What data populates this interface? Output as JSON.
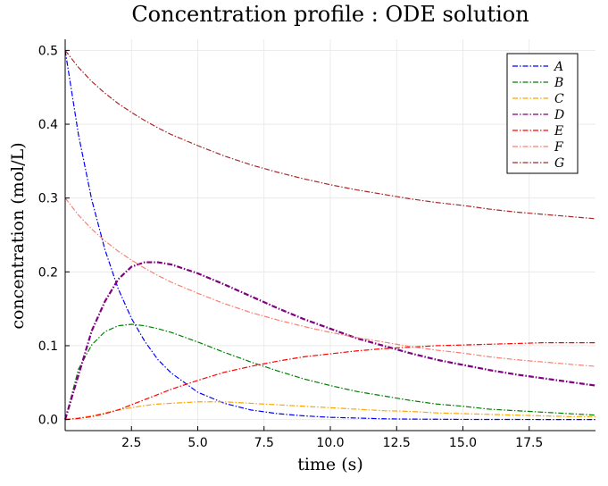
{
  "chart_data": {
    "type": "line",
    "title": "Concentration profile : ODE solution",
    "xlabel": "time (s)",
    "ylabel": "concentration (mol/L)",
    "xlim": [
      0,
      20
    ],
    "ylim": [
      -0.015,
      0.515
    ],
    "xticks": [
      2.5,
      5.0,
      7.5,
      10.0,
      12.5,
      15.0,
      17.5
    ],
    "xtick_labels": [
      "2.5",
      "5.0",
      "7.5",
      "10.0",
      "12.5",
      "15.0",
      "17.5"
    ],
    "yticks": [
      0.0,
      0.1,
      0.2,
      0.3,
      0.4,
      0.5
    ],
    "ytick_labels": [
      "0.0",
      "0.1",
      "0.2",
      "0.3",
      "0.4",
      "0.5"
    ],
    "grid": true,
    "legend": "top-right",
    "x": [
      0,
      0.5,
      1,
      1.5,
      2,
      2.5,
      3,
      3.5,
      4,
      5,
      6,
      7,
      8,
      9,
      10,
      11,
      12,
      13,
      14,
      15,
      16,
      17,
      18,
      19,
      20
    ],
    "series": [
      {
        "name": "A",
        "color": "#0000ff",
        "values": [
          0.5,
          0.386,
          0.298,
          0.23,
          0.177,
          0.137,
          0.106,
          0.081,
          0.063,
          0.037,
          0.022,
          0.013,
          0.008,
          0.005,
          0.003,
          0.002,
          0.001,
          0.0006,
          0.0004,
          0.0002,
          0.0001,
          0.0001,
          0.0,
          0.0,
          0.0
        ]
      },
      {
        "name": "B",
        "color": "#008000",
        "values": [
          0.0,
          0.068,
          0.101,
          0.119,
          0.127,
          0.129,
          0.127,
          0.123,
          0.118,
          0.105,
          0.091,
          0.078,
          0.066,
          0.055,
          0.046,
          0.038,
          0.032,
          0.026,
          0.021,
          0.018,
          0.014,
          0.012,
          0.01,
          0.008,
          0.006
        ]
      },
      {
        "name": "C",
        "color": "#ffa500",
        "values": [
          0.0,
          0.002,
          0.005,
          0.009,
          0.013,
          0.016,
          0.019,
          0.021,
          0.022,
          0.024,
          0.024,
          0.022,
          0.02,
          0.018,
          0.016,
          0.014,
          0.012,
          0.011,
          0.009,
          0.008,
          0.007,
          0.006,
          0.005,
          0.004,
          0.004
        ]
      },
      {
        "name": "D",
        "color": "#800080",
        "values": [
          0.0,
          0.06,
          0.12,
          0.16,
          0.19,
          0.207,
          0.213,
          0.213,
          0.21,
          0.198,
          0.183,
          0.167,
          0.151,
          0.136,
          0.123,
          0.11,
          0.1,
          0.09,
          0.081,
          0.074,
          0.067,
          0.061,
          0.056,
          0.051,
          0.046
        ]
      },
      {
        "name": "E",
        "color": "#ff0000",
        "values": [
          0.0,
          0.0015,
          0.004,
          0.008,
          0.013,
          0.02,
          0.027,
          0.034,
          0.041,
          0.053,
          0.064,
          0.072,
          0.079,
          0.085,
          0.089,
          0.093,
          0.096,
          0.098,
          0.1,
          0.101,
          0.102,
          0.103,
          0.104,
          0.104,
          0.104
        ]
      },
      {
        "name": "F",
        "color": "#fa8072",
        "values": [
          0.3,
          0.277,
          0.258,
          0.242,
          0.228,
          0.216,
          0.205,
          0.195,
          0.186,
          0.171,
          0.157,
          0.145,
          0.135,
          0.126,
          0.118,
          0.111,
          0.105,
          0.099,
          0.094,
          0.09,
          0.085,
          0.081,
          0.078,
          0.075,
          0.072
        ]
      },
      {
        "name": "G",
        "color": "#a52a2a",
        "values": [
          0.5,
          0.477,
          0.458,
          0.442,
          0.428,
          0.416,
          0.405,
          0.395,
          0.386,
          0.371,
          0.357,
          0.345,
          0.335,
          0.326,
          0.318,
          0.311,
          0.305,
          0.299,
          0.294,
          0.29,
          0.285,
          0.281,
          0.278,
          0.275,
          0.272
        ]
      }
    ]
  }
}
